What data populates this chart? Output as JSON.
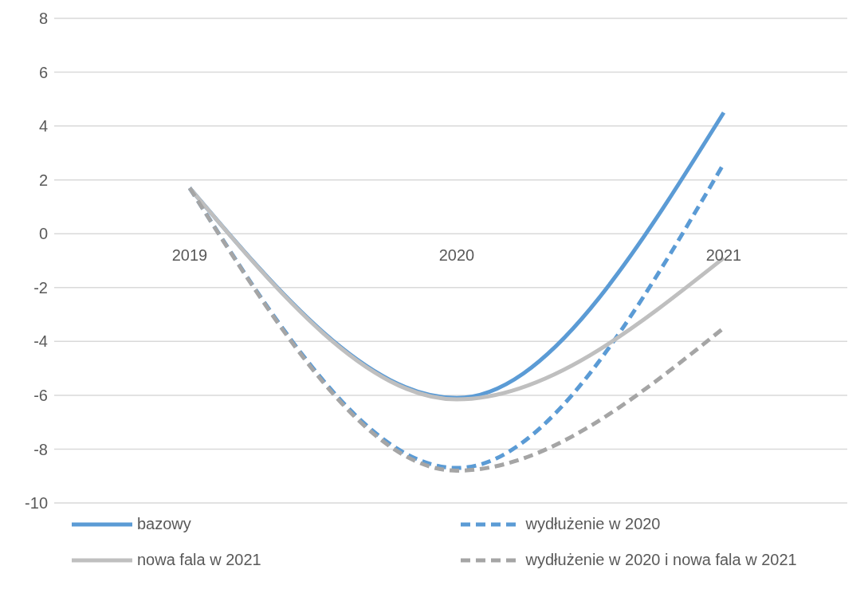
{
  "chart_data": {
    "type": "line",
    "categories": [
      "2019",
      "2020",
      "2021"
    ],
    "series": [
      {
        "name": "bazowy",
        "color": "#5b9bd5",
        "line_style": "solid",
        "values": [
          1.7,
          -6.1,
          4.5
        ]
      },
      {
        "name": "wydłużenie w 2020",
        "color": "#5b9bd5",
        "line_style": "dashed",
        "values": [
          1.7,
          -8.7,
          2.6
        ]
      },
      {
        "name": "nowa fala w 2021",
        "color": "#bfbfbf",
        "line_style": "solid",
        "values": [
          1.7,
          -6.15,
          -0.9
        ]
      },
      {
        "name": "wydłużenie w 2020 i nowa fala w 2021",
        "color": "#a5a5a5",
        "line_style": "dashed",
        "values": [
          1.7,
          -8.8,
          -3.5
        ]
      }
    ],
    "ylim": [
      -10,
      8
    ],
    "yticks": [
      -10,
      -8,
      -6,
      -4,
      -2,
      0,
      2,
      4,
      6,
      8
    ],
    "grid": "y",
    "legend": "bottom",
    "marker": "none"
  }
}
